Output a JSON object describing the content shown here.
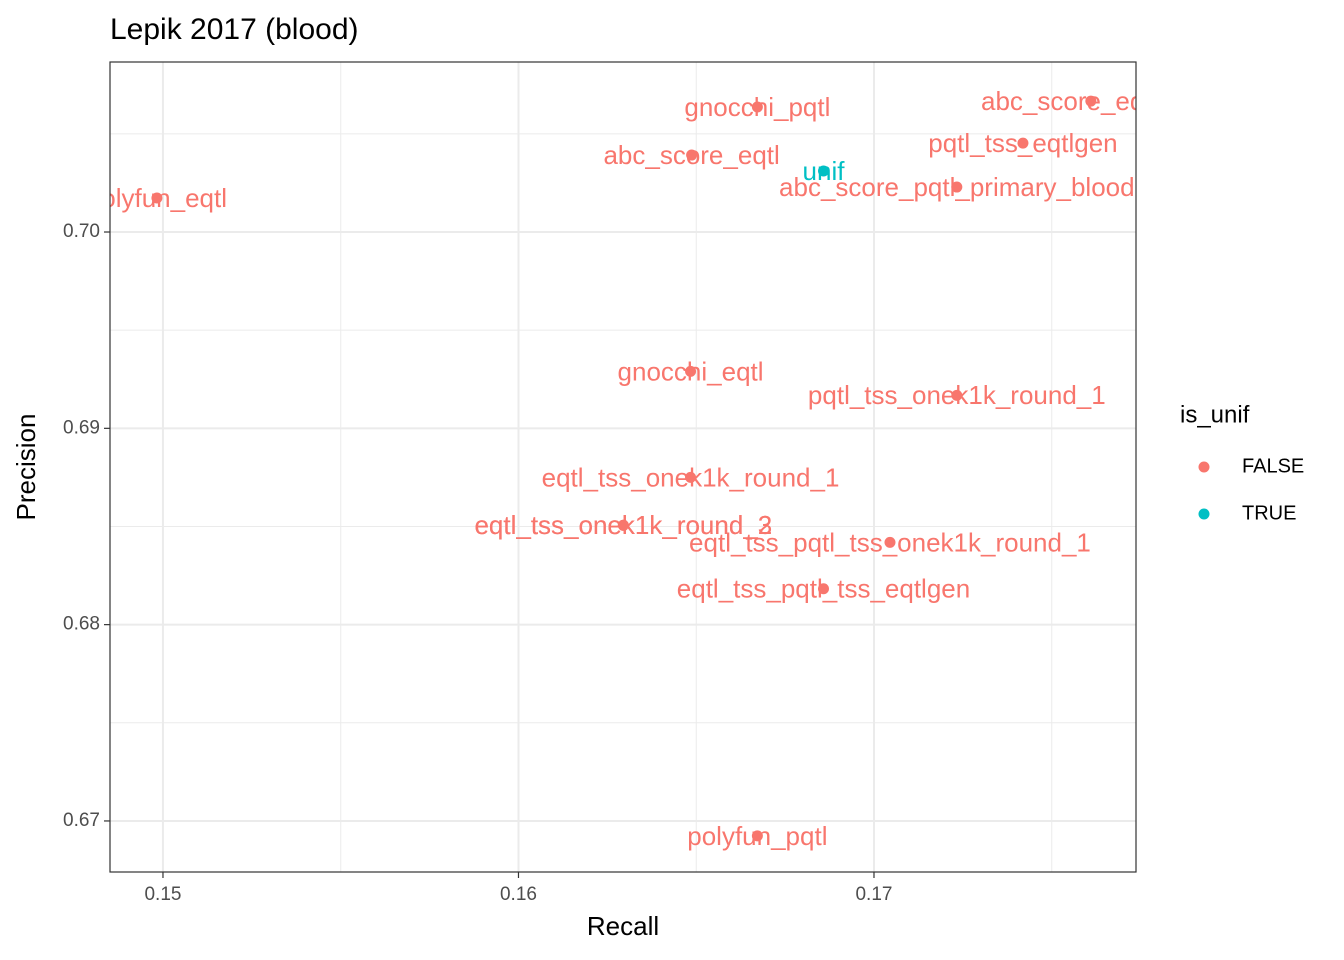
{
  "chart_data": {
    "type": "scatter",
    "title": "Lepik 2017 (blood)",
    "x_label": "Recall",
    "y_label": "Precision",
    "legend_title": "is_unif",
    "legend_position": "right",
    "xlim": [
      0.14851,
      0.17737
    ],
    "ylim": [
      0.6674,
      0.70866
    ],
    "xticks": [
      0.15,
      0.16,
      0.17
    ],
    "yticks": [
      {
        "value": 0.67,
        "label": "0.67"
      },
      {
        "value": 0.68,
        "label": "0.68"
      },
      {
        "value": 0.69,
        "label": "0.69"
      },
      {
        "value": 0.7,
        "label": "0.70"
      }
    ],
    "x_minor_grid": [
      0.155,
      0.165,
      0.175
    ],
    "y_minor_grid": [
      0.675,
      0.685,
      0.695,
      0.705
    ],
    "grid": true,
    "series": [
      {
        "name": "FALSE",
        "color": "#F8766D",
        "labels": [
          "polyfun_eqtl",
          "gnocchi_pqtl",
          "abc_score_eqtlgen",
          "pqtl_tss_eqtlgen",
          "abc_score_eqtl",
          "abc_score_pqtl_primary_blood",
          "gnocchi_eqtl",
          "pqtl_tss_onek1k_round_1",
          "eqtl_tss_onek1k_round_1",
          "eqtl_tss_onek1k_round_2",
          "eqtl_tss_onek1k_round_3",
          "eqtl_tss_pqtl_tss_onek1k_round_1",
          "eqtl_tss_pqtl_tss_eqtlgen",
          "polyfun_pqtl"
        ],
        "x": [
          0.14983,
          0.16672,
          0.1761,
          0.17419,
          0.16487,
          0.17233,
          0.16484,
          0.17233,
          0.16484,
          0.16295,
          0.16295,
          0.17045,
          0.16858,
          0.16672
        ],
        "values": [
          0.70173,
          0.70637,
          0.70667,
          0.70453,
          0.70392,
          0.70229,
          0.6929,
          0.69168,
          0.6875,
          0.68506,
          0.68506,
          0.68419,
          0.68183,
          0.66924
        ]
      },
      {
        "name": "TRUE",
        "color": "#00BFC4",
        "labels": [
          "unif"
        ],
        "x": [
          0.16858
        ],
        "values": [
          0.70311
        ]
      }
    ]
  }
}
